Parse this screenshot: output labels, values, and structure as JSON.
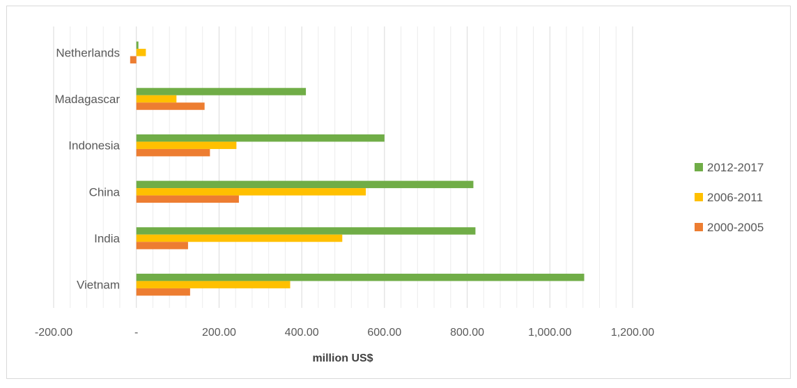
{
  "chart_data": {
    "type": "bar",
    "orientation": "horizontal",
    "categories": [
      "Vietnam",
      "India",
      "China",
      "Indonesia",
      "Madagascar",
      "Netherlands"
    ],
    "series": [
      {
        "name": "2012-2017",
        "color": "#70ad47",
        "values": [
          1083,
          820,
          815,
          600,
          410,
          5
        ]
      },
      {
        "name": "2006-2011",
        "color": "#ffc000",
        "values": [
          372,
          498,
          555,
          242,
          97,
          23
        ]
      },
      {
        "name": "2000-2005",
        "color": "#ed7d31",
        "values": [
          130,
          125,
          248,
          178,
          165,
          -15
        ]
      }
    ],
    "xlabel": "million US$",
    "ylabel": "",
    "title": "",
    "xlim": [
      -200,
      1200
    ],
    "xticks": [
      -200,
      0,
      200,
      400,
      600,
      800,
      1000,
      1200
    ],
    "xtick_labels": [
      "-200.00",
      "-",
      "200.00",
      "400.00",
      "600.00",
      "800.00",
      "1,000.00",
      "1,200.00"
    ],
    "grid": true,
    "legend_position": "right",
    "legend_order": [
      "2012-2017",
      "2006-2011",
      "2000-2005"
    ]
  }
}
